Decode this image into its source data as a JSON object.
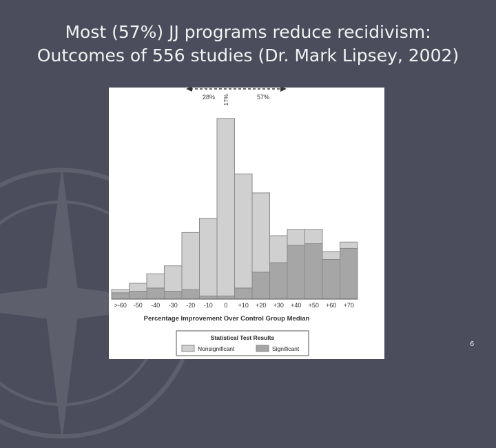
{
  "slide": {
    "title_line1": "Most (57%) JJ programs reduce recidivism:",
    "title_line2": "Outcomes of 556 studies (Dr. Mark Lipsey, 2002)",
    "page_number": "6"
  },
  "colors": {
    "background": "#4b4d5c",
    "nonsignificant": "#d0d0d0",
    "significant": "#a6a6a6",
    "bar_stroke": "#8a8a8a"
  },
  "chart_data": {
    "type": "bar",
    "stacked": true,
    "title": "",
    "xlabel": "Percentage Improvement Over Control Group Median",
    "ylabel": "",
    "grid": false,
    "categories": [
      ">-60",
      "-50",
      "-40",
      "-30",
      "-20",
      "-10",
      "0",
      "+10",
      "+20",
      "+30",
      "+40",
      "+50",
      "+60",
      "+70"
    ],
    "series": [
      {
        "name": "Significant",
        "values": [
          2.0,
          2.5,
          3.5,
          2.5,
          3.0,
          1.0,
          1.0,
          3.5,
          8.5,
          11.5,
          17.0,
          17.5,
          12.5,
          16.0
        ]
      },
      {
        "name": "Nonsignificant",
        "values": [
          1.0,
          2.5,
          4.5,
          8.0,
          18.0,
          24.5,
          56.0,
          36.0,
          25.0,
          8.5,
          5.0,
          4.5,
          2.5,
          2.0
        ]
      }
    ],
    "ylim": [
      0,
      60
    ],
    "legend": {
      "title": "Statistical Test Results",
      "items": [
        "Nonsignificant",
        "Significant"
      ],
      "placement": "bottom"
    },
    "annotations": {
      "left_pct": "28%",
      "center_pct": "17%",
      "right_pct": "57%"
    }
  }
}
